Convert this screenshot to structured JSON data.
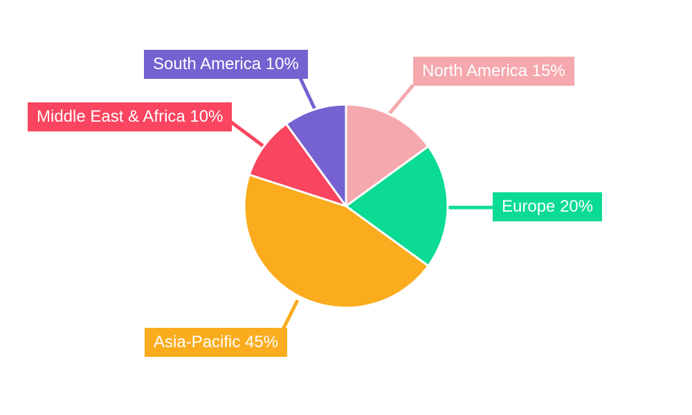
{
  "chart_data": {
    "type": "pie",
    "title": "",
    "categories": [
      "North America",
      "Europe",
      "Asia-Pacific",
      "Middle East & Africa",
      "South America"
    ],
    "values": [
      15,
      20,
      45,
      10,
      10
    ],
    "unit": "%",
    "labels": [
      "North America 15%",
      "Europe 20%",
      "Asia-Pacific 45%",
      "Middle East & Africa 10%",
      "South America 10%"
    ],
    "colors": [
      "#F5A8AD",
      "#0CDB93",
      "#FAAC1E",
      "#F9455F",
      "#7661D1"
    ],
    "slice_border_color": "#FFFFFF",
    "label_text_color": "#FFFFFF",
    "background": "#FFFFFF",
    "start_angle_deg": 0,
    "direction": "clockwise",
    "legend_position": "none",
    "label_style": "callout-boxes-with-leader-lines"
  }
}
